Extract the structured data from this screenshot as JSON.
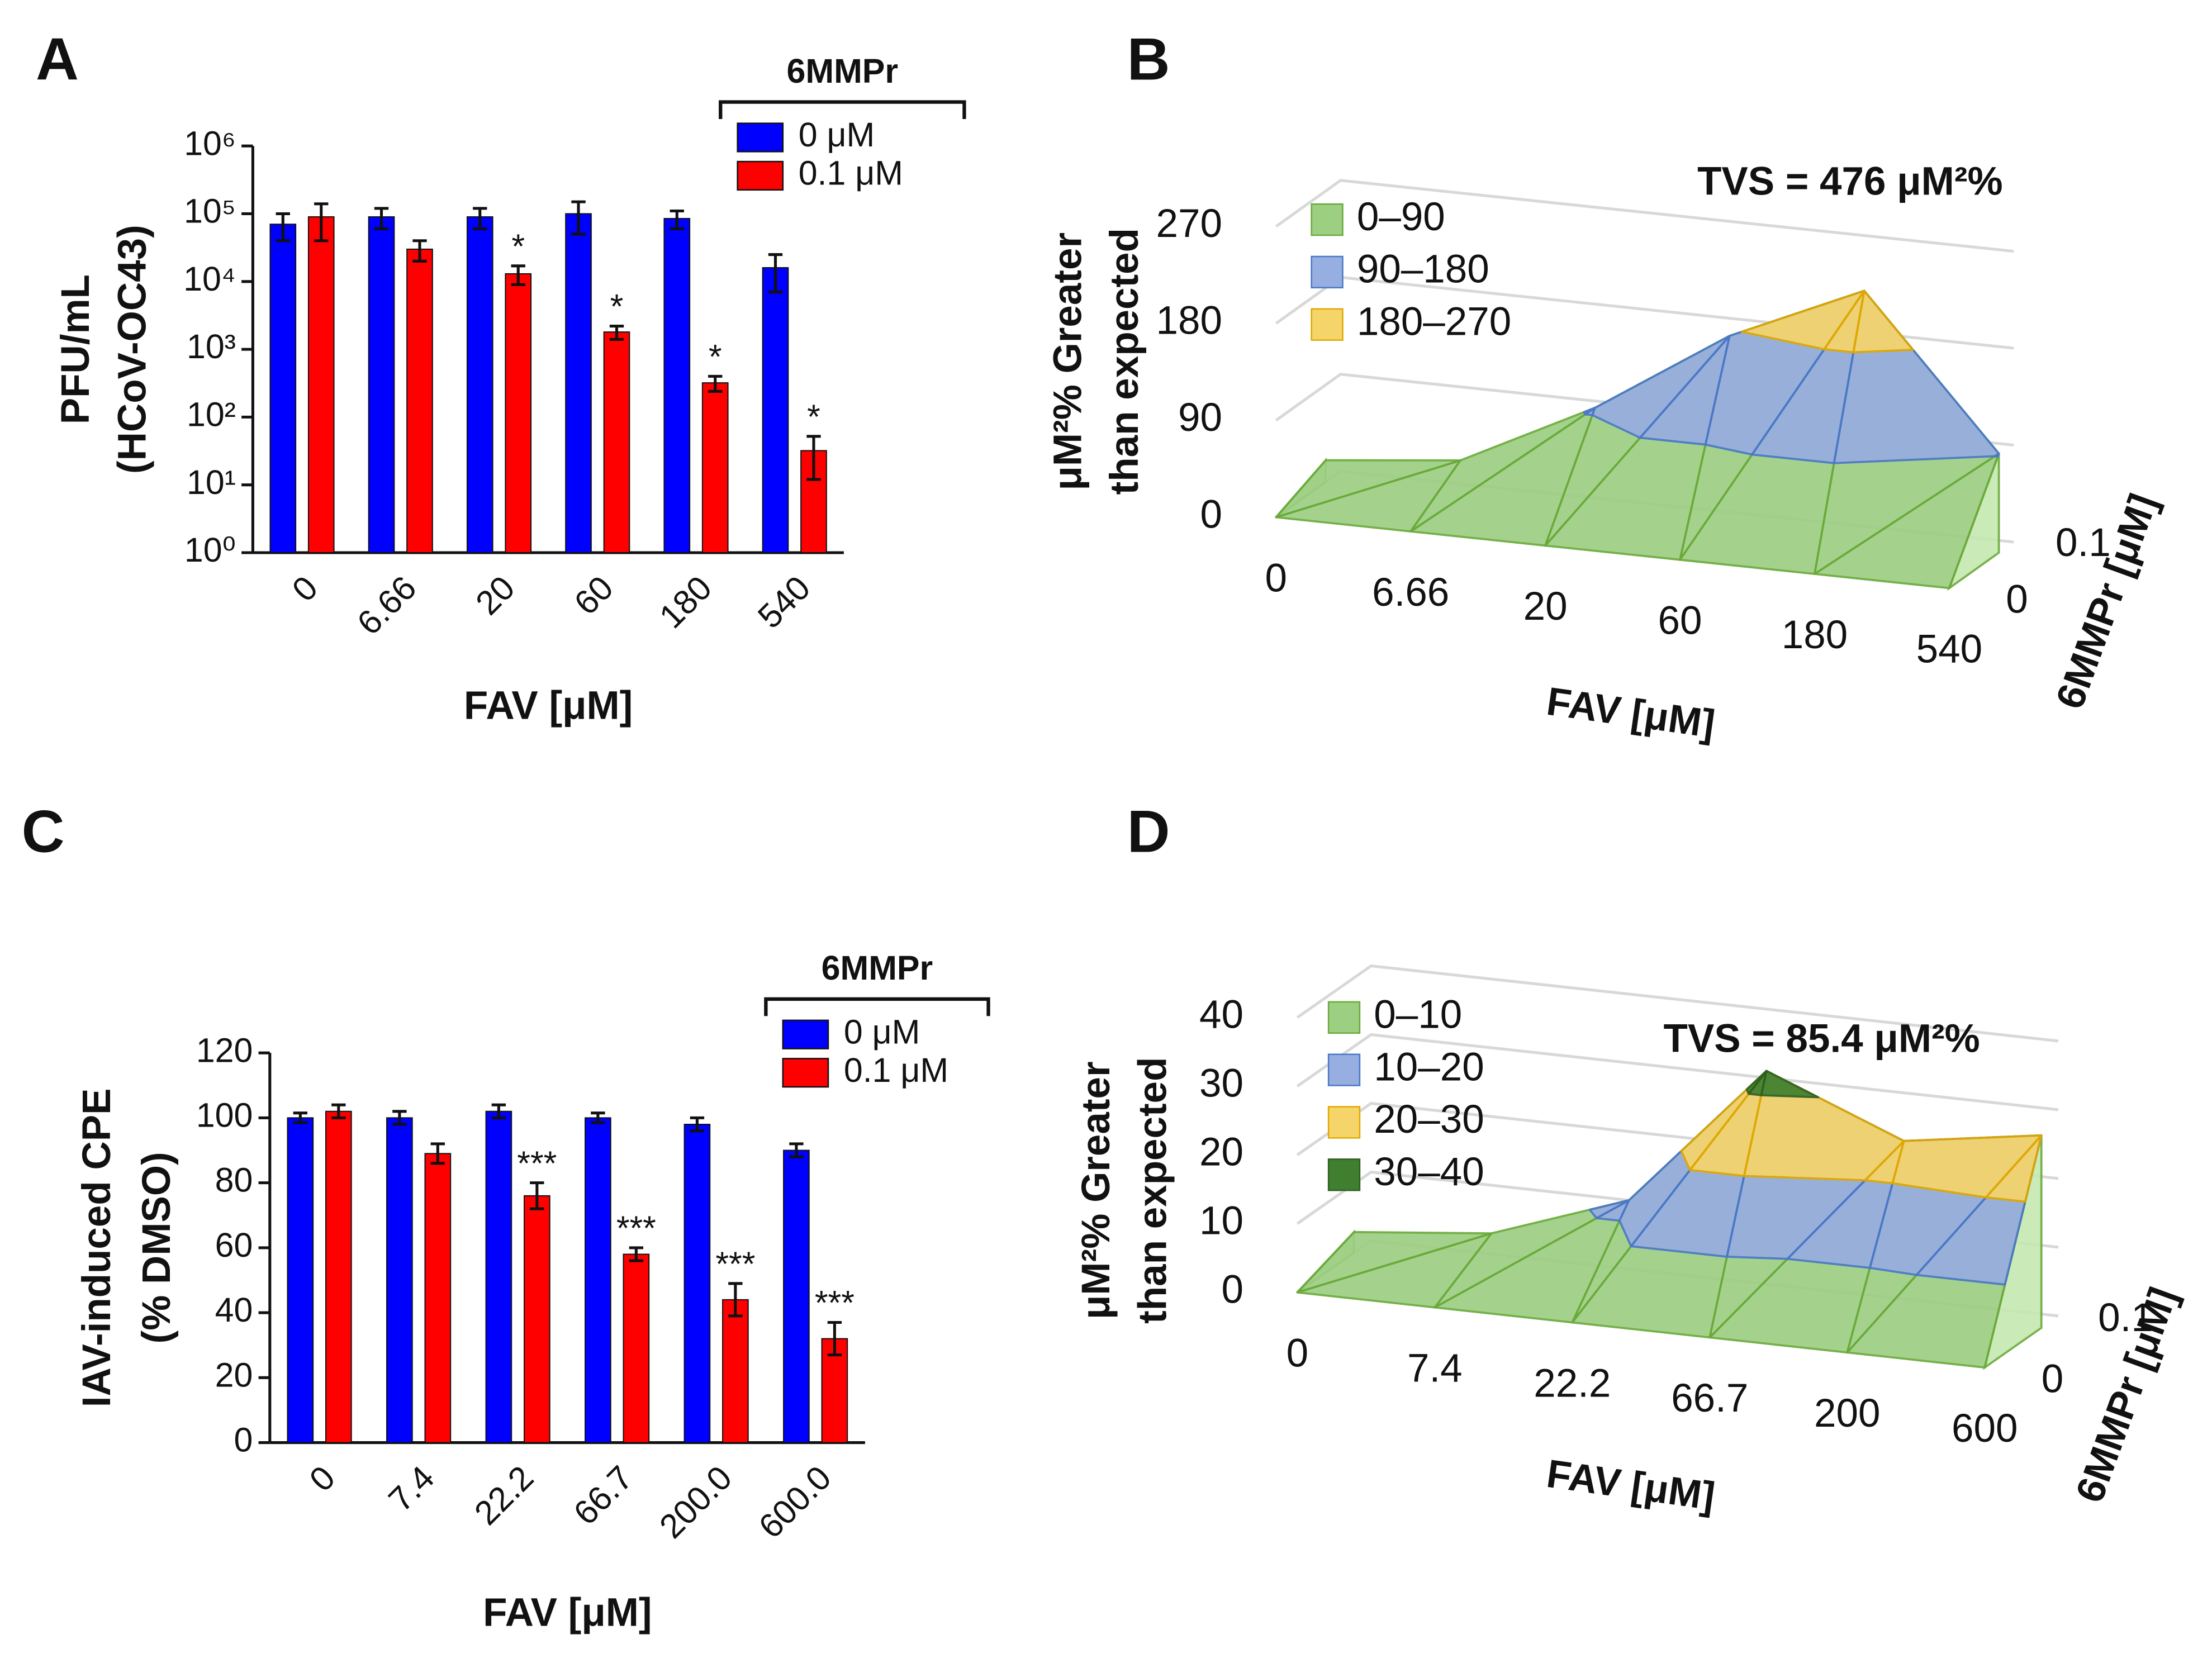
{
  "chart_data": [
    {
      "panel": "A",
      "type": "bar",
      "ylabel": [
        "PFU/mL",
        "(HCoV-OC43)"
      ],
      "xlabel": "FAV [μM]",
      "categories": [
        "0",
        "6.66",
        "20",
        "60",
        "180",
        "540"
      ],
      "legend_title": "6MMPr",
      "log_scale": true,
      "ylim": [
        1,
        1000000
      ],
      "yticks": [
        {
          "value": 1,
          "label": "10⁰"
        },
        {
          "value": 10,
          "label": "10¹"
        },
        {
          "value": 100,
          "label": "10²"
        },
        {
          "value": 1000,
          "label": "10³"
        },
        {
          "value": 10000,
          "label": "10⁴"
        },
        {
          "value": 100000,
          "label": "10⁵"
        },
        {
          "value": 1000000,
          "label": "10⁶"
        }
      ],
      "series": [
        {
          "name": "0 μM",
          "color": "#0000ff",
          "values": [
            70000,
            90000,
            90000,
            100000,
            85000,
            16000
          ],
          "errors": [
            30000,
            30000,
            30000,
            50000,
            25000,
            9000
          ]
        },
        {
          "name": "0.1 μM",
          "color": "#ff0000",
          "values": [
            90000,
            30000,
            13000,
            1800,
            320,
            32
          ],
          "errors": [
            50000,
            10000,
            4000,
            400,
            80,
            20
          ],
          "annotations": [
            null,
            null,
            "*",
            "*",
            "*",
            "*"
          ]
        }
      ]
    },
    {
      "panel": "B",
      "type": "surface",
      "title": "TVS = 476 μM²%",
      "zlabel": [
        "μM²% Greater",
        "than expected"
      ],
      "xlabel": "FAV [μM]",
      "ylabel": "6MMPr [μM]",
      "categories": [
        "0",
        "6.66",
        "20",
        "60",
        "180",
        "540"
      ],
      "rows": [
        "0",
        "0.1"
      ],
      "values": [
        [
          0,
          0,
          0,
          0,
          0,
          0
        ],
        [
          20,
          33,
          95,
          175,
          230,
          92
        ]
      ],
      "zlim": [
        0,
        270
      ],
      "zticks": [
        0,
        90,
        180,
        270
      ],
      "bands": [
        {
          "label": "0–90",
          "range": [
            0,
            90
          ],
          "color": "#9dcf83"
        },
        {
          "label": "90–180",
          "range": [
            90,
            180
          ],
          "color": "#97aee0"
        },
        {
          "label": "180–270",
          "range": [
            180,
            270
          ],
          "color": "#f5d46a"
        }
      ]
    },
    {
      "panel": "C",
      "type": "bar",
      "ylabel": [
        "IAV-induced CPE",
        "(% DMSO)"
      ],
      "xlabel": "FAV [μM]",
      "categories": [
        "0",
        "7.4",
        "22.2",
        "66.7",
        "200.0",
        "600.0"
      ],
      "legend_title": "6MMPr",
      "log_scale": false,
      "ylim": [
        0,
        120
      ],
      "yticks": [
        0,
        20,
        40,
        60,
        80,
        100,
        120
      ],
      "series": [
        {
          "name": "0 μM",
          "color": "#0000ff",
          "values": [
            100,
            100,
            102,
            100,
            98,
            90
          ],
          "errors": [
            1.5,
            2,
            2,
            1.5,
            2,
            2
          ]
        },
        {
          "name": "0.1 μM",
          "color": "#ff0000",
          "values": [
            102,
            89,
            76,
            58,
            44,
            32
          ],
          "errors": [
            2,
            3,
            4,
            2,
            5,
            5
          ],
          "annotations": [
            null,
            null,
            "***",
            "***",
            "***",
            "***"
          ]
        }
      ]
    },
    {
      "panel": "D",
      "type": "surface",
      "title": "TVS = 85.4 μM²%",
      "zlabel": [
        "μM²% Greater",
        "than expected"
      ],
      "xlabel": "FAV [μM]",
      "ylabel": "6MMPr [μM]",
      "categories": [
        "0",
        "7.4",
        "22.2",
        "66.7",
        "200",
        "600"
      ],
      "rows": [
        "0",
        "0.1"
      ],
      "values": [
        [
          0,
          0,
          0,
          0,
          0,
          0
        ],
        [
          3,
          5,
          12,
          33,
          25,
          28
        ]
      ],
      "zlim": [
        0,
        40
      ],
      "zticks": [
        0,
        10,
        20,
        30,
        40
      ],
      "bands": [
        {
          "label": "0–10",
          "range": [
            0,
            10
          ],
          "color": "#9dcf83"
        },
        {
          "label": "10–20",
          "range": [
            10,
            20
          ],
          "color": "#97aee0"
        },
        {
          "label": "20–30",
          "range": [
            20,
            30
          ],
          "color": "#f5d46a"
        },
        {
          "label": "30–40",
          "range": [
            30,
            40
          ],
          "color": "#3f7f2f"
        }
      ]
    }
  ]
}
